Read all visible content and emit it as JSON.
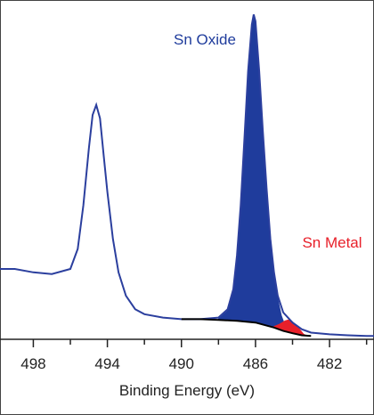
{
  "chart_data": {
    "type": "line",
    "xlabel": "Binding Energy (eV)",
    "xlim": [
      499.8,
      479.6
    ],
    "ylim": [
      0,
      100
    ],
    "xticks": [
      498,
      494,
      490,
      486,
      482
    ],
    "xminorticks": [
      496,
      492,
      488,
      484,
      480
    ],
    "series": [
      {
        "color": "#2b3f9e",
        "x": [
          499.8,
          499,
          498,
          497,
          496,
          495.6,
          495.3,
          495,
          494.8,
          494.6,
          494.4,
          494.2,
          494,
          493.7,
          493.4,
          493,
          492.5,
          492,
          491,
          490,
          489,
          488,
          487.5,
          487.2,
          487,
          486.8,
          486.6,
          486.4,
          486.2,
          486.1,
          486,
          485.8,
          485.6,
          485.4,
          485.2,
          485,
          484.8,
          484.5,
          484,
          483.5,
          483,
          482,
          481,
          480,
          479.6
        ],
        "values": [
          21,
          21,
          20,
          19.5,
          21,
          27,
          40,
          57,
          67,
          70,
          66,
          55,
          44,
          30,
          20,
          13,
          9,
          7.5,
          6.5,
          6,
          6,
          6.5,
          9,
          15,
          25,
          40,
          60,
          80,
          94,
          97,
          95,
          80,
          62,
          45,
          30,
          20,
          13,
          8,
          5,
          3,
          2,
          1.5,
          1.2,
          1,
          1
        ]
      },
      {
        "name": "Sn Oxide",
        "color": "#1f3c9c",
        "fill": true,
        "x": [
          488,
          487.5,
          487.2,
          487,
          486.8,
          486.6,
          486.4,
          486.2,
          486.1,
          486,
          485.8,
          485.6,
          485.4,
          485.2,
          485,
          484.8,
          484.6,
          484.4,
          484.2
        ],
        "values": [
          6,
          8.5,
          14.5,
          24.5,
          39.5,
          59.5,
          79.5,
          93.5,
          96.5,
          94.5,
          79.5,
          61.5,
          44.5,
          29.5,
          19.5,
          12,
          7,
          4,
          3
        ]
      },
      {
        "name": "Sn Metal",
        "color": "#e8202a",
        "fill": true,
        "x": [
          485,
          484.7,
          484.4,
          484.2,
          484,
          483.7,
          483.4,
          483.2
        ],
        "values": [
          3.8,
          4.5,
          5.5,
          5.8,
          5.2,
          3.5,
          1.5,
          1.0
        ]
      },
      {
        "color": "#000000",
        "x": [
          490,
          489,
          488,
          487,
          486,
          485,
          484.5,
          484,
          483.5,
          483
        ],
        "values": [
          6,
          6,
          5.8,
          5.5,
          5,
          3.5,
          2.5,
          1.8,
          1.2,
          1.0
        ]
      }
    ]
  }
}
